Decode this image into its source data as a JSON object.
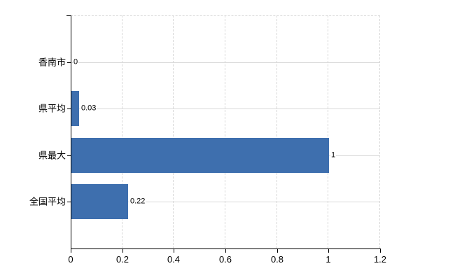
{
  "chart_data": {
    "type": "bar",
    "orientation": "horizontal",
    "title": "",
    "categories": [
      "香南市",
      "県平均",
      "県最大",
      "全国平均"
    ],
    "values": [
      0,
      0.03,
      1,
      0.22
    ],
    "value_labels": [
      "0",
      "0.03",
      "1",
      "0.22"
    ],
    "xlabel": "",
    "ylabel": "",
    "xlim": [
      0,
      1.2
    ],
    "x_ticks": [
      0,
      0.2,
      0.4,
      0.6,
      0.8,
      1,
      1.2
    ],
    "x_tick_labels": [
      "0",
      "0.2",
      "0.4",
      "0.6",
      "0.8",
      "1",
      "1.2"
    ],
    "grid": true,
    "legend_position": "none",
    "colors": {
      "bar": "#3e6fae",
      "gridline": "#d9d9d9",
      "axis": "#000000",
      "text": "#000000",
      "background": "#ffffff"
    }
  }
}
